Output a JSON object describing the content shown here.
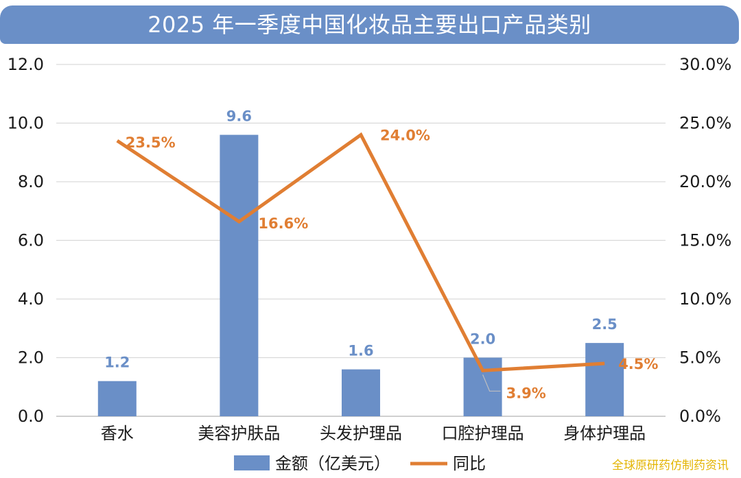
{
  "title": "2025 年一季度中国化妆品主要出口产品类别",
  "watermark": "全球原研药仿制药资讯",
  "colors": {
    "bar": "#6a8fc7",
    "line": "#e07e33",
    "title_bg": "#6a8fc7",
    "watermark": "#e3b400"
  },
  "chart_data": {
    "type": "bar",
    "categories": [
      "香水",
      "美容护肤品",
      "头发护理品",
      "口腔护理品",
      "身体护理品"
    ],
    "series": [
      {
        "name": "金额（亿美元）",
        "type": "bar",
        "axis": "left",
        "values": [
          1.2,
          9.6,
          1.6,
          2.0,
          2.5
        ],
        "labels": [
          "1.2",
          "9.6",
          "1.6",
          "2.0",
          "2.5"
        ]
      },
      {
        "name": "同比",
        "type": "line",
        "axis": "right",
        "values": [
          23.5,
          16.6,
          24.0,
          3.9,
          4.5
        ],
        "labels": [
          "23.5%",
          "16.6%",
          "24.0%",
          "3.9%",
          "4.5%"
        ]
      }
    ],
    "y_left": {
      "ylim": [
        0,
        12
      ],
      "ticks": [
        "0.0",
        "2.0",
        "4.0",
        "6.0",
        "8.0",
        "10.0",
        "12.0"
      ]
    },
    "y_right": {
      "ylim": [
        0,
        30
      ],
      "ticks": [
        "0.0%",
        "5.0%",
        "10.0%",
        "15.0%",
        "20.0%",
        "25.0%",
        "30.0%"
      ]
    },
    "grid": true,
    "legend": "bottom"
  }
}
